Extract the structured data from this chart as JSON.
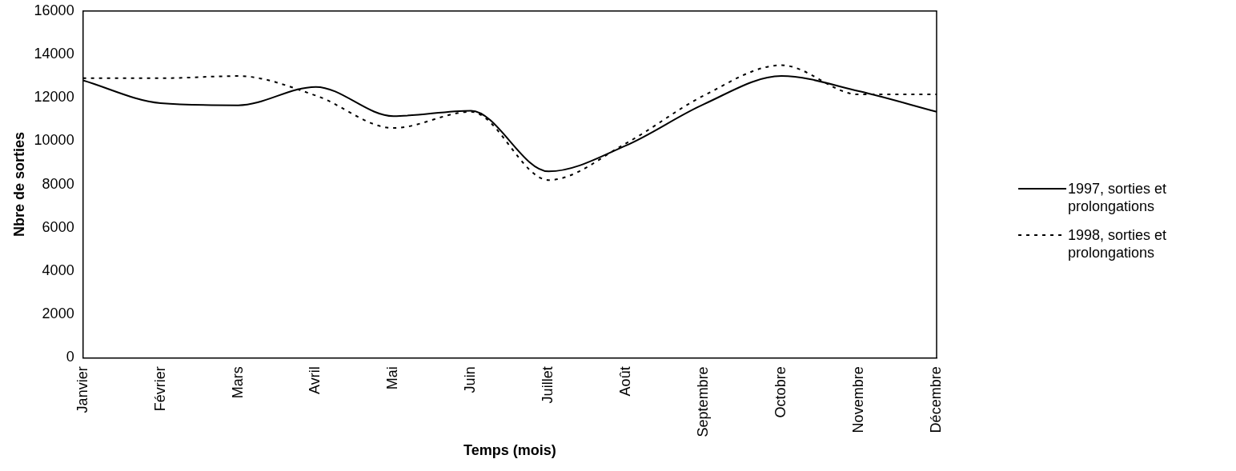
{
  "chart_data": {
    "type": "line",
    "xlabel": "Temps (mois)",
    "ylabel": "Nbre de sorties",
    "categories": [
      "Janvier",
      "Février",
      "Mars",
      "Avril",
      "Mai",
      "Juin",
      "Juillet",
      "Août",
      "Septembre",
      "Octobre",
      "Novembre",
      "Décembre"
    ],
    "series": [
      {
        "name": "1997, sorties et prolongations",
        "color": "#000000",
        "line_style": "solid",
        "values": [
          12800,
          11750,
          11650,
          12500,
          11150,
          11400,
          8600,
          9800,
          11700,
          13000,
          12300,
          11350
        ]
      },
      {
        "name": "1998, sorties et prolongations",
        "color": "#000000",
        "line_style": "dotted",
        "values": [
          12900,
          12900,
          13000,
          12100,
          10600,
          11350,
          8200,
          9900,
          12100,
          13500,
          12150,
          12150
        ]
      }
    ],
    "ylim": [
      0,
      16000
    ],
    "yticks": [
      0,
      2000,
      4000,
      6000,
      8000,
      10000,
      12000,
      14000,
      16000
    ],
    "grid": false,
    "legend": "right",
    "marker": "none"
  }
}
